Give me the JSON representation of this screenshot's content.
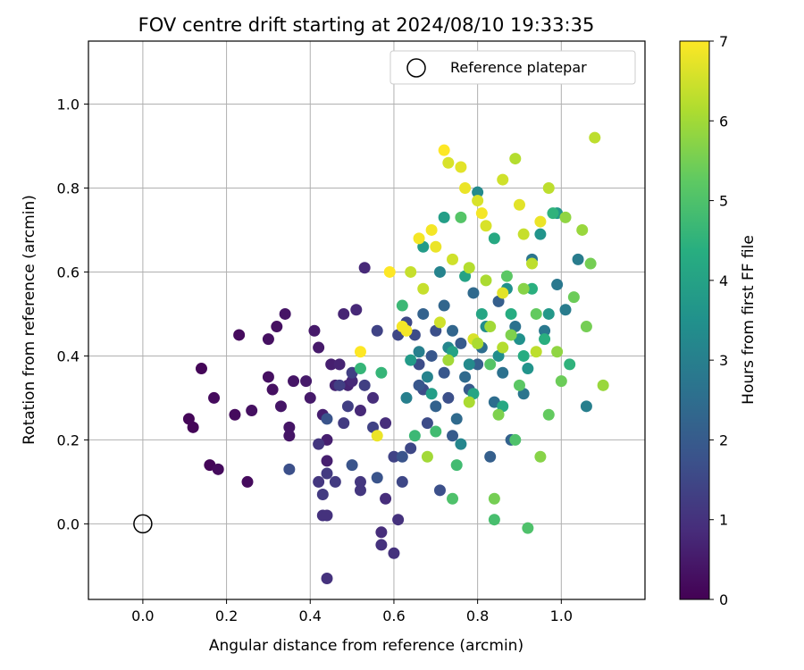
{
  "chart_data": {
    "type": "scatter",
    "title": "FOV centre drift starting at 2024/08/10 19:33:35",
    "xlabel": "Angular distance from reference (arcmin)",
    "ylabel": "Rotation from reference (arcmin)",
    "xlim": [
      -0.13,
      1.2
    ],
    "ylim": [
      -0.18,
      1.15
    ],
    "xticks": [
      0.0,
      0.2,
      0.4,
      0.6,
      0.8,
      1.0
    ],
    "yticks": [
      0.0,
      0.2,
      0.4,
      0.6,
      0.8,
      1.0
    ],
    "xtick_labels": [
      "0.0",
      "0.2",
      "0.4",
      "0.6",
      "0.8",
      "1.0"
    ],
    "ytick_labels": [
      "0.0",
      "0.2",
      "0.4",
      "0.6",
      "0.8",
      "1.0"
    ],
    "grid": true,
    "legend": {
      "position": "top-right",
      "entries": [
        {
          "label": "Reference platepar",
          "marker": "open-circle"
        }
      ]
    },
    "reference_point": {
      "x": 0.0,
      "y": 0.0
    },
    "colorbar": {
      "label": "Hours from first FF file",
      "colormap": "viridis",
      "range": [
        0,
        7
      ],
      "ticks": [
        0,
        1,
        2,
        3,
        4,
        5,
        6,
        7
      ],
      "tick_labels": [
        "0",
        "1",
        "2",
        "3",
        "4",
        "5",
        "6",
        "7"
      ]
    },
    "points": [
      {
        "x": 0.11,
        "y": 0.25,
        "h": 0.1
      },
      {
        "x": 0.12,
        "y": 0.23,
        "h": 0.1
      },
      {
        "x": 0.14,
        "y": 0.37,
        "h": 0.1
      },
      {
        "x": 0.16,
        "y": 0.14,
        "h": 0.1
      },
      {
        "x": 0.17,
        "y": 0.3,
        "h": 0.2
      },
      {
        "x": 0.18,
        "y": 0.13,
        "h": 0.2
      },
      {
        "x": 0.22,
        "y": 0.26,
        "h": 0.2
      },
      {
        "x": 0.23,
        "y": 0.45,
        "h": 0.2
      },
      {
        "x": 0.25,
        "y": 0.1,
        "h": 0.2
      },
      {
        "x": 0.26,
        "y": 0.27,
        "h": 0.3
      },
      {
        "x": 0.3,
        "y": 0.35,
        "h": 0.3
      },
      {
        "x": 0.3,
        "y": 0.44,
        "h": 0.3
      },
      {
        "x": 0.31,
        "y": 0.32,
        "h": 0.3
      },
      {
        "x": 0.32,
        "y": 0.47,
        "h": 0.3
      },
      {
        "x": 0.33,
        "y": 0.28,
        "h": 0.4
      },
      {
        "x": 0.34,
        "y": 0.5,
        "h": 0.4
      },
      {
        "x": 0.35,
        "y": 0.21,
        "h": 0.4
      },
      {
        "x": 0.35,
        "y": 0.23,
        "h": 0.4
      },
      {
        "x": 0.36,
        "y": 0.34,
        "h": 0.4
      },
      {
        "x": 0.39,
        "y": 0.34,
        "h": 0.5
      },
      {
        "x": 0.4,
        "y": 0.3,
        "h": 0.5
      },
      {
        "x": 0.41,
        "y": 0.46,
        "h": 0.5
      },
      {
        "x": 0.42,
        "y": 0.42,
        "h": 0.5
      },
      {
        "x": 0.43,
        "y": 0.26,
        "h": 0.6
      },
      {
        "x": 0.44,
        "y": 0.2,
        "h": 0.6
      },
      {
        "x": 0.44,
        "y": 0.15,
        "h": 0.6
      },
      {
        "x": 0.45,
        "y": 0.38,
        "h": 0.6
      },
      {
        "x": 0.46,
        "y": 0.33,
        "h": 0.7
      },
      {
        "x": 0.47,
        "y": 0.38,
        "h": 0.7
      },
      {
        "x": 0.48,
        "y": 0.5,
        "h": 0.7
      },
      {
        "x": 0.49,
        "y": 0.33,
        "h": 0.7
      },
      {
        "x": 0.5,
        "y": 0.34,
        "h": 0.8
      },
      {
        "x": 0.51,
        "y": 0.51,
        "h": 0.8
      },
      {
        "x": 0.52,
        "y": 0.27,
        "h": 0.8
      },
      {
        "x": 0.53,
        "y": 0.61,
        "h": 0.8
      },
      {
        "x": 0.55,
        "y": 0.3,
        "h": 0.9
      },
      {
        "x": 0.57,
        "y": -0.02,
        "h": 0.9
      },
      {
        "x": 0.58,
        "y": 0.06,
        "h": 0.9
      },
      {
        "x": 0.58,
        "y": 0.24,
        "h": 0.9
      },
      {
        "x": 0.6,
        "y": -0.07,
        "h": 1.0
      },
      {
        "x": 0.61,
        "y": 0.01,
        "h": 1.0
      },
      {
        "x": 0.57,
        "y": -0.05,
        "h": 1.0
      },
      {
        "x": 0.43,
        "y": 0.02,
        "h": 1.0
      },
      {
        "x": 0.44,
        "y": 0.02,
        "h": 1.0
      },
      {
        "x": 0.44,
        "y": -0.13,
        "h": 1.0
      },
      {
        "x": 0.52,
        "y": 0.08,
        "h": 1.1
      },
      {
        "x": 0.52,
        "y": 0.1,
        "h": 1.1
      },
      {
        "x": 0.42,
        "y": 0.1,
        "h": 1.1
      },
      {
        "x": 0.42,
        "y": 0.19,
        "h": 1.1
      },
      {
        "x": 0.43,
        "y": 0.07,
        "h": 1.2
      },
      {
        "x": 0.44,
        "y": 0.12,
        "h": 1.2
      },
      {
        "x": 0.46,
        "y": 0.1,
        "h": 1.2
      },
      {
        "x": 0.48,
        "y": 0.24,
        "h": 1.2
      },
      {
        "x": 0.47,
        "y": 0.33,
        "h": 1.3
      },
      {
        "x": 0.49,
        "y": 0.28,
        "h": 1.3
      },
      {
        "x": 0.5,
        "y": 0.36,
        "h": 1.3
      },
      {
        "x": 0.53,
        "y": 0.33,
        "h": 1.3
      },
      {
        "x": 0.55,
        "y": 0.23,
        "h": 1.4
      },
      {
        "x": 0.56,
        "y": 0.46,
        "h": 1.4
      },
      {
        "x": 0.6,
        "y": 0.16,
        "h": 1.4
      },
      {
        "x": 0.61,
        "y": 0.45,
        "h": 1.5
      },
      {
        "x": 0.62,
        "y": 0.1,
        "h": 1.5
      },
      {
        "x": 0.63,
        "y": 0.48,
        "h": 1.5
      },
      {
        "x": 0.64,
        "y": 0.18,
        "h": 1.5
      },
      {
        "x": 0.65,
        "y": 0.45,
        "h": 1.6
      },
      {
        "x": 0.66,
        "y": 0.38,
        "h": 1.6
      },
      {
        "x": 0.67,
        "y": 0.32,
        "h": 1.6
      },
      {
        "x": 0.68,
        "y": 0.24,
        "h": 1.6
      },
      {
        "x": 0.7,
        "y": 0.46,
        "h": 1.7
      },
      {
        "x": 0.71,
        "y": 0.08,
        "h": 1.7
      },
      {
        "x": 0.73,
        "y": 0.3,
        "h": 1.7
      },
      {
        "x": 0.35,
        "y": 0.13,
        "h": 1.7
      },
      {
        "x": 0.44,
        "y": 0.25,
        "h": 1.8
      },
      {
        "x": 0.5,
        "y": 0.14,
        "h": 1.8
      },
      {
        "x": 0.56,
        "y": 0.11,
        "h": 1.8
      },
      {
        "x": 0.62,
        "y": 0.16,
        "h": 1.8
      },
      {
        "x": 0.66,
        "y": 0.33,
        "h": 1.9
      },
      {
        "x": 0.69,
        "y": 0.4,
        "h": 1.9
      },
      {
        "x": 0.72,
        "y": 0.36,
        "h": 1.9
      },
      {
        "x": 0.74,
        "y": 0.21,
        "h": 2.0
      },
      {
        "x": 0.76,
        "y": 0.43,
        "h": 2.0
      },
      {
        "x": 0.78,
        "y": 0.32,
        "h": 2.0
      },
      {
        "x": 0.8,
        "y": 0.38,
        "h": 2.1
      },
      {
        "x": 0.83,
        "y": 0.16,
        "h": 2.1
      },
      {
        "x": 0.85,
        "y": 0.53,
        "h": 2.1
      },
      {
        "x": 0.88,
        "y": 0.2,
        "h": 2.2
      },
      {
        "x": 0.67,
        "y": 0.5,
        "h": 2.2
      },
      {
        "x": 0.7,
        "y": 0.28,
        "h": 2.2
      },
      {
        "x": 0.72,
        "y": 0.52,
        "h": 2.3
      },
      {
        "x": 0.74,
        "y": 0.46,
        "h": 2.3
      },
      {
        "x": 0.75,
        "y": 0.25,
        "h": 2.4
      },
      {
        "x": 0.77,
        "y": 0.35,
        "h": 2.4
      },
      {
        "x": 0.79,
        "y": 0.55,
        "h": 2.4
      },
      {
        "x": 0.81,
        "y": 0.42,
        "h": 2.5
      },
      {
        "x": 0.84,
        "y": 0.29,
        "h": 2.5
      },
      {
        "x": 0.86,
        "y": 0.36,
        "h": 2.6
      },
      {
        "x": 0.89,
        "y": 0.47,
        "h": 2.6
      },
      {
        "x": 0.91,
        "y": 0.31,
        "h": 2.7
      },
      {
        "x": 0.93,
        "y": 0.63,
        "h": 2.7
      },
      {
        "x": 0.96,
        "y": 0.46,
        "h": 2.8
      },
      {
        "x": 0.99,
        "y": 0.57,
        "h": 2.8
      },
      {
        "x": 1.01,
        "y": 0.51,
        "h": 2.9
      },
      {
        "x": 1.04,
        "y": 0.63,
        "h": 2.9
      },
      {
        "x": 1.06,
        "y": 0.28,
        "h": 3.0
      },
      {
        "x": 0.63,
        "y": 0.3,
        "h": 3.0
      },
      {
        "x": 0.66,
        "y": 0.41,
        "h": 3.0
      },
      {
        "x": 0.68,
        "y": 0.35,
        "h": 3.1
      },
      {
        "x": 0.71,
        "y": 0.6,
        "h": 3.1
      },
      {
        "x": 0.73,
        "y": 0.42,
        "h": 3.2
      },
      {
        "x": 0.76,
        "y": 0.19,
        "h": 3.2
      },
      {
        "x": 0.78,
        "y": 0.38,
        "h": 3.3
      },
      {
        "x": 0.8,
        "y": 0.79,
        "h": 3.3
      },
      {
        "x": 0.82,
        "y": 0.47,
        "h": 3.4
      },
      {
        "x": 0.85,
        "y": 0.4,
        "h": 3.4
      },
      {
        "x": 0.87,
        "y": 0.56,
        "h": 3.5
      },
      {
        "x": 0.9,
        "y": 0.44,
        "h": 3.5
      },
      {
        "x": 0.92,
        "y": 0.37,
        "h": 3.6
      },
      {
        "x": 0.95,
        "y": 0.69,
        "h": 3.6
      },
      {
        "x": 0.97,
        "y": 0.5,
        "h": 3.7
      },
      {
        "x": 0.99,
        "y": 0.74,
        "h": 3.7
      },
      {
        "x": 0.64,
        "y": 0.39,
        "h": 3.8
      },
      {
        "x": 0.67,
        "y": 0.66,
        "h": 3.8
      },
      {
        "x": 0.69,
        "y": 0.31,
        "h": 3.9
      },
      {
        "x": 0.72,
        "y": 0.73,
        "h": 3.9
      },
      {
        "x": 0.74,
        "y": 0.41,
        "h": 4.0
      },
      {
        "x": 0.77,
        "y": 0.59,
        "h": 4.0
      },
      {
        "x": 0.79,
        "y": 0.31,
        "h": 4.1
      },
      {
        "x": 0.81,
        "y": 0.5,
        "h": 4.1
      },
      {
        "x": 0.84,
        "y": 0.68,
        "h": 4.2
      },
      {
        "x": 0.86,
        "y": 0.28,
        "h": 4.2
      },
      {
        "x": 0.88,
        "y": 0.5,
        "h": 4.3
      },
      {
        "x": 0.91,
        "y": 0.4,
        "h": 4.3
      },
      {
        "x": 0.93,
        "y": 0.56,
        "h": 4.4
      },
      {
        "x": 0.96,
        "y": 0.44,
        "h": 4.4
      },
      {
        "x": 0.98,
        "y": 0.74,
        "h": 4.5
      },
      {
        "x": 1.02,
        "y": 0.38,
        "h": 4.5
      },
      {
        "x": 0.52,
        "y": 0.37,
        "h": 4.6
      },
      {
        "x": 0.57,
        "y": 0.36,
        "h": 4.6
      },
      {
        "x": 0.62,
        "y": 0.52,
        "h": 4.7
      },
      {
        "x": 0.65,
        "y": 0.21,
        "h": 4.7
      },
      {
        "x": 0.7,
        "y": 0.22,
        "h": 4.8
      },
      {
        "x": 0.75,
        "y": 0.14,
        "h": 4.8
      },
      {
        "x": 0.8,
        "y": 0.43,
        "h": 4.9
      },
      {
        "x": 0.84,
        "y": 0.01,
        "h": 4.9
      },
      {
        "x": 0.89,
        "y": 0.2,
        "h": 5.0
      },
      {
        "x": 0.92,
        "y": -0.01,
        "h": 5.0
      },
      {
        "x": 0.74,
        "y": 0.06,
        "h": 5.0
      },
      {
        "x": 0.76,
        "y": 0.73,
        "h": 5.1
      },
      {
        "x": 0.83,
        "y": 0.38,
        "h": 5.1
      },
      {
        "x": 0.87,
        "y": 0.59,
        "h": 5.2
      },
      {
        "x": 0.9,
        "y": 0.33,
        "h": 5.2
      },
      {
        "x": 0.94,
        "y": 0.5,
        "h": 5.3
      },
      {
        "x": 0.97,
        "y": 0.26,
        "h": 5.3
      },
      {
        "x": 1.0,
        "y": 0.34,
        "h": 5.4
      },
      {
        "x": 1.03,
        "y": 0.54,
        "h": 5.4
      },
      {
        "x": 1.06,
        "y": 0.47,
        "h": 5.5
      },
      {
        "x": 1.07,
        "y": 0.62,
        "h": 5.5
      },
      {
        "x": 0.84,
        "y": 0.06,
        "h": 5.5
      },
      {
        "x": 0.85,
        "y": 0.26,
        "h": 5.6
      },
      {
        "x": 0.88,
        "y": 0.45,
        "h": 5.6
      },
      {
        "x": 0.91,
        "y": 0.56,
        "h": 5.7
      },
      {
        "x": 0.95,
        "y": 0.16,
        "h": 5.7
      },
      {
        "x": 0.99,
        "y": 0.41,
        "h": 5.8
      },
      {
        "x": 1.01,
        "y": 0.73,
        "h": 5.8
      },
      {
        "x": 1.05,
        "y": 0.7,
        "h": 5.9
      },
      {
        "x": 1.1,
        "y": 0.33,
        "h": 5.9
      },
      {
        "x": 0.68,
        "y": 0.16,
        "h": 6.0
      },
      {
        "x": 0.73,
        "y": 0.39,
        "h": 6.0
      },
      {
        "x": 0.78,
        "y": 0.29,
        "h": 6.1
      },
      {
        "x": 0.82,
        "y": 0.58,
        "h": 6.1
      },
      {
        "x": 0.86,
        "y": 0.42,
        "h": 6.2
      },
      {
        "x": 0.89,
        "y": 0.87,
        "h": 6.2
      },
      {
        "x": 0.93,
        "y": 0.62,
        "h": 6.3
      },
      {
        "x": 0.97,
        "y": 0.8,
        "h": 6.3
      },
      {
        "x": 1.08,
        "y": 0.92,
        "h": 6.3
      },
      {
        "x": 0.64,
        "y": 0.6,
        "h": 6.4
      },
      {
        "x": 0.67,
        "y": 0.56,
        "h": 6.4
      },
      {
        "x": 0.71,
        "y": 0.48,
        "h": 6.5
      },
      {
        "x": 0.74,
        "y": 0.63,
        "h": 6.5
      },
      {
        "x": 0.79,
        "y": 0.44,
        "h": 6.6
      },
      {
        "x": 0.82,
        "y": 0.71,
        "h": 6.6
      },
      {
        "x": 0.86,
        "y": 0.55,
        "h": 6.7
      },
      {
        "x": 0.9,
        "y": 0.76,
        "h": 6.7
      },
      {
        "x": 0.95,
        "y": 0.72,
        "h": 6.8
      },
      {
        "x": 0.56,
        "y": 0.21,
        "h": 6.8
      },
      {
        "x": 0.62,
        "y": 0.47,
        "h": 6.9
      },
      {
        "x": 0.66,
        "y": 0.68,
        "h": 6.9
      },
      {
        "x": 0.72,
        "y": 0.89,
        "h": 7.0
      },
      {
        "x": 0.52,
        "y": 0.41,
        "h": 7.0
      },
      {
        "x": 0.59,
        "y": 0.6,
        "h": 7.0
      },
      {
        "x": 0.63,
        "y": 0.46,
        "h": 6.9
      },
      {
        "x": 0.7,
        "y": 0.66,
        "h": 6.8
      },
      {
        "x": 0.76,
        "y": 0.85,
        "h": 6.7
      },
      {
        "x": 0.8,
        "y": 0.77,
        "h": 6.6
      },
      {
        "x": 0.86,
        "y": 0.82,
        "h": 6.5
      },
      {
        "x": 0.91,
        "y": 0.69,
        "h": 6.4
      },
      {
        "x": 0.94,
        "y": 0.41,
        "h": 6.3
      },
      {
        "x": 0.78,
        "y": 0.61,
        "h": 6.2
      },
      {
        "x": 0.8,
        "y": 0.43,
        "h": 6.1
      },
      {
        "x": 0.83,
        "y": 0.47,
        "h": 6.0
      },
      {
        "x": 0.69,
        "y": 0.7,
        "h": 6.9
      },
      {
        "x": 0.73,
        "y": 0.86,
        "h": 6.6
      },
      {
        "x": 0.77,
        "y": 0.8,
        "h": 6.8
      },
      {
        "x": 0.81,
        "y": 0.74,
        "h": 6.9
      }
    ]
  }
}
